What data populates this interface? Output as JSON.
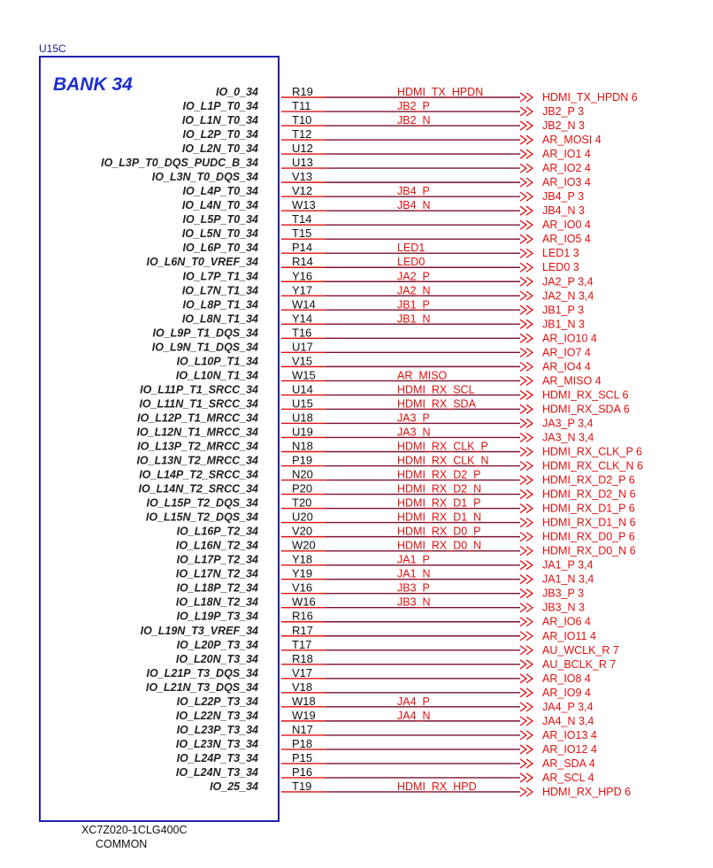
{
  "ref": "U15C",
  "bank": "BANK 34",
  "part_number": "XC7Z020-1CLG400C",
  "part_sub": "COMMON",
  "pins": [
    {
      "name": "IO_0_34",
      "num": "R19",
      "net": "HDMI_TX_HPDN",
      "port": "HDMI_TX_HPDN 6"
    },
    {
      "name": "IO_L1P_T0_34",
      "num": "T11",
      "net": "JB2_P",
      "port": "JB2_P 3"
    },
    {
      "name": "IO_L1N_T0_34",
      "num": "T10",
      "net": "JB2_N",
      "port": "JB2_N 3"
    },
    {
      "name": "IO_L2P_T0_34",
      "num": "T12",
      "net": "",
      "port": "AR_MOSI 4"
    },
    {
      "name": "IO_L2N_T0_34",
      "num": "U12",
      "net": "",
      "port": "AR_IO1 4"
    },
    {
      "name": "IO_L3P_T0_DQS_PUDC_B_34",
      "num": "U13",
      "net": "",
      "port": "AR_IO2 4"
    },
    {
      "name": "IO_L3N_T0_DQS_34",
      "num": "V13",
      "net": "",
      "port": "AR_IO3 4"
    },
    {
      "name": "IO_L4P_T0_34",
      "num": "V12",
      "net": "JB4_P",
      "port": "JB4_P 3"
    },
    {
      "name": "IO_L4N_T0_34",
      "num": "W13",
      "net": "JB4_N",
      "port": "JB4_N 3"
    },
    {
      "name": "IO_L5P_T0_34",
      "num": "T14",
      "net": "",
      "port": "AR_IO0 4"
    },
    {
      "name": "IO_L5N_T0_34",
      "num": "T15",
      "net": "",
      "port": "AR_IO5 4"
    },
    {
      "name": "IO_L6P_T0_34",
      "num": "P14",
      "net": "LED1",
      "port": "LED1 3"
    },
    {
      "name": "IO_L6N_T0_VREF_34",
      "num": "R14",
      "net": "LED0",
      "port": "LED0 3"
    },
    {
      "name": "IO_L7P_T1_34",
      "num": "Y16",
      "net": "JA2_P",
      "port": "JA2_P 3,4"
    },
    {
      "name": "IO_L7N_T1_34",
      "num": "Y17",
      "net": "JA2_N",
      "port": "JA2_N 3,4"
    },
    {
      "name": "IO_L8P_T1_34",
      "num": "W14",
      "net": "JB1_P",
      "port": "JB1_P 3"
    },
    {
      "name": "IO_L8N_T1_34",
      "num": "Y14",
      "net": "JB1_N",
      "port": "JB1_N 3"
    },
    {
      "name": "IO_L9P_T1_DQS_34",
      "num": "T16",
      "net": "",
      "port": "AR_IO10 4"
    },
    {
      "name": "IO_L9N_T1_DQS_34",
      "num": "U17",
      "net": "",
      "port": "AR_IO7 4"
    },
    {
      "name": "IO_L10P_T1_34",
      "num": "V15",
      "net": "",
      "port": "AR_IO4 4"
    },
    {
      "name": "IO_L10N_T1_34",
      "num": "W15",
      "net": "AR_MISO",
      "port": "AR_MISO 4"
    },
    {
      "name": "IO_L11P_T1_SRCC_34",
      "num": "U14",
      "net": "HDMI_RX_SCL",
      "port": "HDMI_RX_SCL 6"
    },
    {
      "name": "IO_L11N_T1_SRCC_34",
      "num": "U15",
      "net": "HDMI_RX_SDA",
      "port": "HDMI_RX_SDA 6"
    },
    {
      "name": "IO_L12P_T1_MRCC_34",
      "num": "U18",
      "net": "JA3_P",
      "port": "JA3_P 3,4"
    },
    {
      "name": "IO_L12N_T1_MRCC_34",
      "num": "U19",
      "net": "JA3_N",
      "port": "JA3_N 3,4"
    },
    {
      "name": "IO_L13P_T2_MRCC_34",
      "num": "N18",
      "net": "HDMI_RX_CLK_P",
      "port": "HDMI_RX_CLK_P 6"
    },
    {
      "name": "IO_L13N_T2_MRCC_34",
      "num": "P19",
      "net": "HDMI_RX_CLK_N",
      "port": "HDMI_RX_CLK_N 6"
    },
    {
      "name": "IO_L14P_T2_SRCC_34",
      "num": "N20",
      "net": "HDMI_RX_D2_P",
      "port": "HDMI_RX_D2_P 6"
    },
    {
      "name": "IO_L14N_T2_SRCC_34",
      "num": "P20",
      "net": "HDMI_RX_D2_N",
      "port": "HDMI_RX_D2_N 6"
    },
    {
      "name": "IO_L15P_T2_DQS_34",
      "num": "T20",
      "net": "HDMI_RX_D1_P",
      "port": "HDMI_RX_D1_P 6"
    },
    {
      "name": "IO_L15N_T2_DQS_34",
      "num": "U20",
      "net": "HDMI_RX_D1_N",
      "port": "HDMI_RX_D1_N 6"
    },
    {
      "name": "IO_L16P_T2_34",
      "num": "V20",
      "net": "HDMI_RX_D0_P",
      "port": "HDMI_RX_D0_P 6"
    },
    {
      "name": "IO_L16N_T2_34",
      "num": "W20",
      "net": "HDMI_RX_D0_N",
      "port": "HDMI_RX_D0_N 6"
    },
    {
      "name": "IO_L17P_T2_34",
      "num": "Y18",
      "net": "JA1_P",
      "port": "JA1_P 3,4"
    },
    {
      "name": "IO_L17N_T2_34",
      "num": "Y19",
      "net": "JA1_N",
      "port": "JA1_N 3,4"
    },
    {
      "name": "IO_L18P_T2_34",
      "num": "V16",
      "net": "JB3_P",
      "port": "JB3_P 3"
    },
    {
      "name": "IO_L18N_T2_34",
      "num": "W16",
      "net": "JB3_N",
      "port": "JB3_N 3"
    },
    {
      "name": "IO_L19P_T3_34",
      "num": "R16",
      "net": "",
      "port": "AR_IO6 4"
    },
    {
      "name": "IO_L19N_T3_VREF_34",
      "num": "R17",
      "net": "",
      "port": "AR_IO11 4"
    },
    {
      "name": "IO_L20P_T3_34",
      "num": "T17",
      "net": "",
      "port": "AU_WCLK_R 7"
    },
    {
      "name": "IO_L20N_T3_34",
      "num": "R18",
      "net": "",
      "port": "AU_BCLK_R 7"
    },
    {
      "name": "IO_L21P_T3_DQS_34",
      "num": "V17",
      "net": "",
      "port": "AR_IO8 4"
    },
    {
      "name": "IO_L21N_T3_DQS_34",
      "num": "V18",
      "net": "",
      "port": "AR_IO9 4"
    },
    {
      "name": "IO_L22P_T3_34",
      "num": "W18",
      "net": "JA4_P",
      "port": "JA4_P 3,4"
    },
    {
      "name": "IO_L22N_T3_34",
      "num": "W19",
      "net": "JA4_N",
      "port": "JA4_N 3,4"
    },
    {
      "name": "IO_L23P_T3_34",
      "num": "N17",
      "net": "",
      "port": "AR_IO13 4"
    },
    {
      "name": "IO_L23N_T3_34",
      "num": "P18",
      "net": "",
      "port": "AR_IO12 4"
    },
    {
      "name": "IO_L24P_T3_34",
      "num": "P15",
      "net": "",
      "port": "AR_SDA 4"
    },
    {
      "name": "IO_L24N_T3_34",
      "num": "P16",
      "net": "",
      "port": "AR_SCL 4"
    },
    {
      "name": "IO_25_34",
      "num": "T19",
      "net": "HDMI_RX_HPD",
      "port": "HDMI_RX_HPD 6"
    }
  ]
}
